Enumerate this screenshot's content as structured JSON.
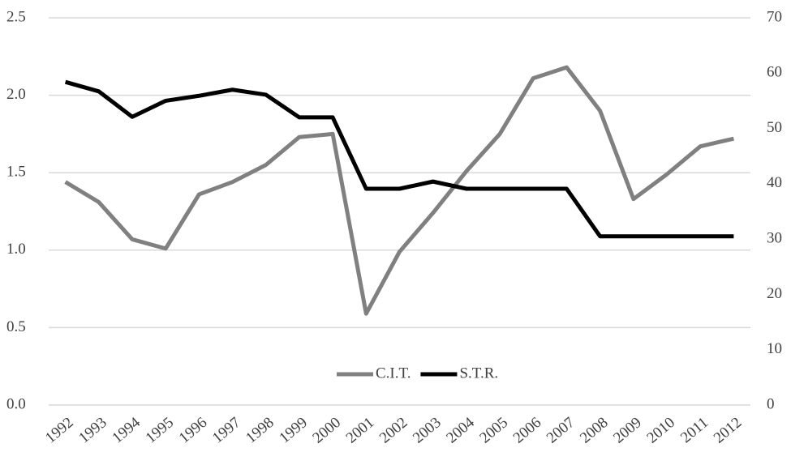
{
  "chart_data": {
    "type": "line",
    "categories": [
      "1992",
      "1993",
      "1994",
      "1995",
      "1996",
      "1997",
      "1998",
      "1999",
      "2000",
      "2001",
      "2002",
      "2003",
      "2004",
      "2005",
      "2006",
      "2007",
      "2008",
      "2009",
      "2010",
      "2011",
      "2012"
    ],
    "series": [
      {
        "name": "C.I.T.",
        "color": "#808080",
        "values": [
          1.44,
          1.31,
          1.07,
          1.01,
          1.36,
          1.44,
          1.55,
          1.73,
          1.75,
          0.59,
          0.99,
          1.24,
          1.51,
          1.75,
          2.11,
          2.18,
          1.9,
          1.33,
          1.49,
          1.67,
          1.72
        ]
      },
      {
        "name": "S.T.R.",
        "color": "#000000",
        "axis": "y2",
        "values": [
          58.4,
          56.7,
          52.1,
          55.0,
          55.9,
          57.0,
          56.1,
          52.0,
          52.0,
          39.1,
          39.1,
          40.4,
          39.1,
          39.1,
          39.1,
          39.1,
          30.5,
          30.5,
          30.5,
          30.5,
          30.5
        ]
      }
    ],
    "ylim": [
      0,
      2.5
    ],
    "yticks": [
      {
        "value": 0,
        "label": "0.0"
      },
      0.5,
      {
        "value": 1,
        "label": "1.0"
      },
      1.5,
      {
        "value": 2,
        "label": "2.0"
      },
      2.5
    ],
    "y2lim": [
      0,
      70
    ],
    "y2ticks": [
      0,
      10,
      20,
      30,
      40,
      50,
      60,
      70
    ],
    "grid": true,
    "legend": "bottom"
  }
}
